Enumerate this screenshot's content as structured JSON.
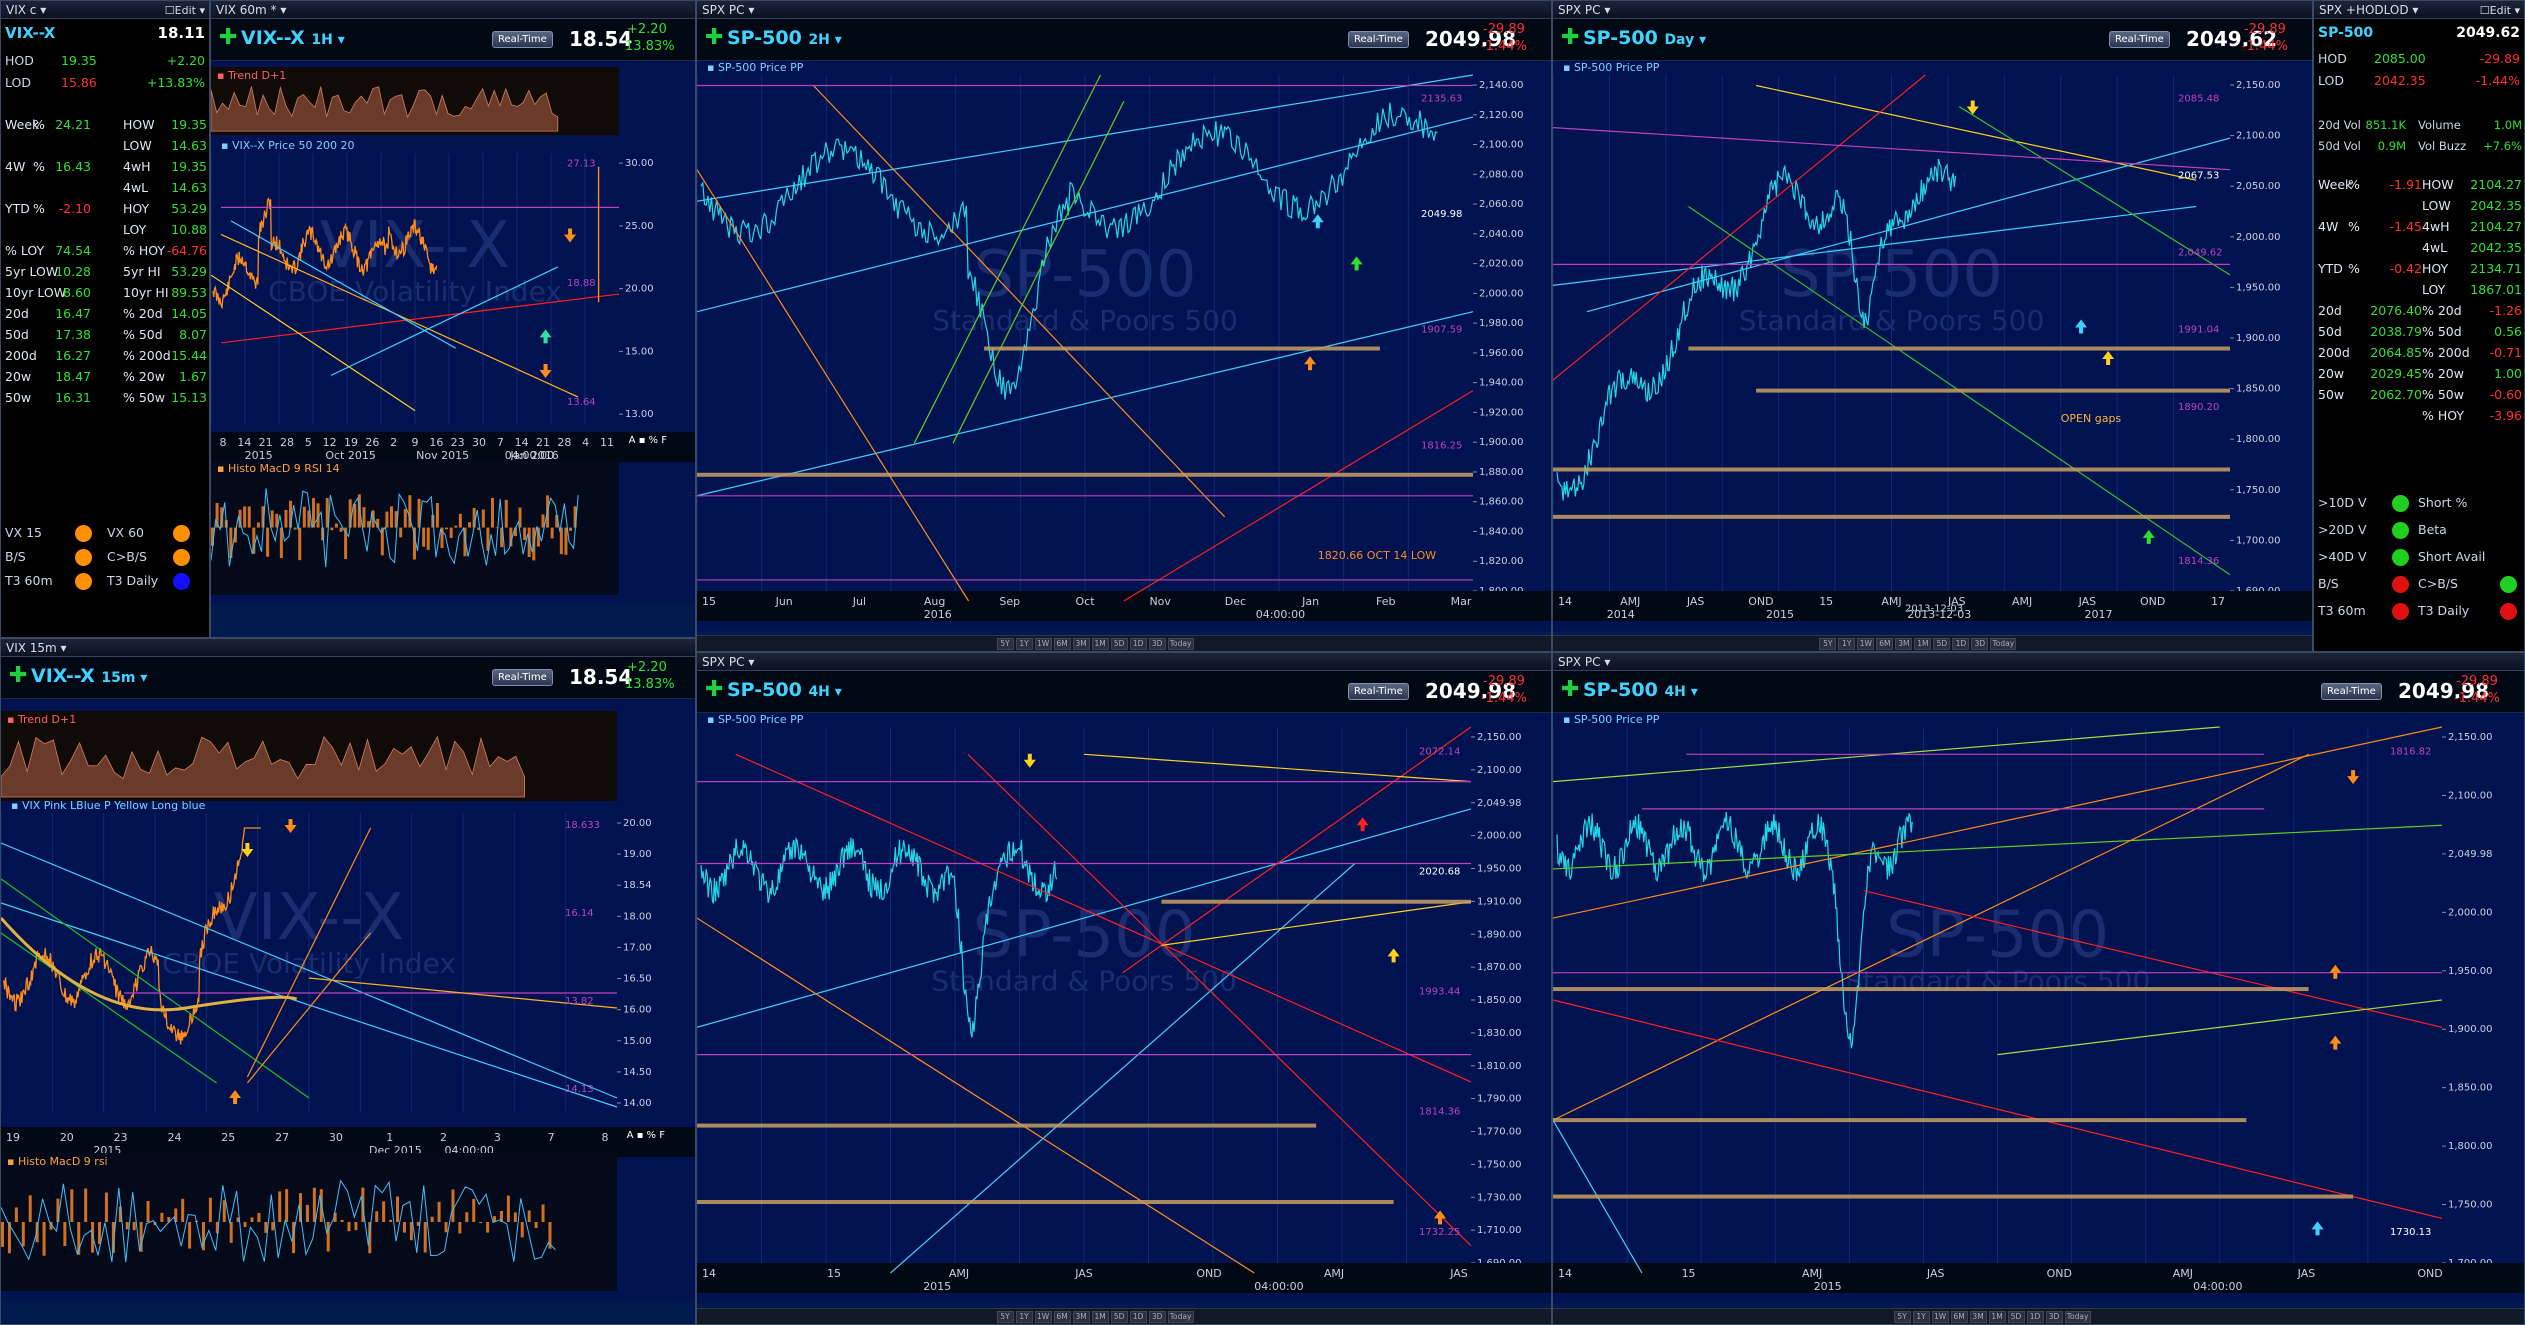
{
  "quote_left": {
    "title": "VIX c",
    "edit": "Edit",
    "symbol": "VIX--X",
    "last": "18.11",
    "rows": [
      {
        "l": "HOD",
        "v": "19.35",
        "v2": "+2.20",
        "c": "#30e030"
      },
      {
        "l": "LOD",
        "v": "15.86",
        "v2": "+13.83%",
        "c": "#ff3030"
      }
    ],
    "stats": [
      [
        "Week",
        "%",
        "24.21",
        "HOW",
        "19.35"
      ],
      [
        "",
        "",
        "",
        "LOW",
        "14.63"
      ],
      [
        "4W",
        "%",
        "16.43",
        "4wH",
        "19.35"
      ],
      [
        "",
        "",
        "",
        "4wL",
        "14.63"
      ],
      [
        "YTD",
        "%",
        "-2.10",
        "HOY",
        "53.29"
      ],
      [
        "",
        "",
        "",
        "LOY",
        "10.88"
      ],
      [
        "% LOY",
        "",
        "74.54",
        "% HOY",
        "-64.76"
      ],
      [
        "5yr LOW",
        "",
        "10.28",
        "5yr HI",
        "53.29"
      ],
      [
        "10yr LOW",
        "",
        "8.60",
        "10yr HI",
        "89.53"
      ],
      [
        "20d",
        "",
        "16.47",
        "% 20d",
        "14.05"
      ],
      [
        "50d",
        "",
        "17.38",
        "% 50d",
        "8.07"
      ],
      [
        "200d",
        "",
        "16.27",
        "% 200d",
        "15.44"
      ],
      [
        "20w",
        "",
        "18.47",
        "% 20w",
        "1.67"
      ],
      [
        "50w",
        "",
        "16.31",
        "% 50w",
        "15.13"
      ]
    ],
    "signals": [
      [
        "VX 15",
        "VX 60"
      ],
      [
        "B/S",
        "C>B/S"
      ],
      [
        "T3 60m",
        "T3 Daily"
      ]
    ]
  },
  "quote_right": {
    "title": "SPX +HODLOD",
    "edit": "Edit",
    "symbol": "SP-500",
    "last": "2049.62",
    "rows": [
      {
        "l": "HOD",
        "v": "2085.00",
        "v2": "-29.89"
      },
      {
        "l": "LOD",
        "v": "2042.35",
        "v2": "-1.44%"
      }
    ],
    "vol": [
      [
        "20d Vol",
        "851.1K",
        "Volume",
        "1.0M"
      ],
      [
        "50d Vol",
        "0.9M",
        "Vol Buzz",
        "+7.6%"
      ]
    ],
    "stats": [
      [
        "Week",
        "%",
        "-1.91",
        "HOW",
        "2104.27"
      ],
      [
        "",
        "",
        "",
        "LOW",
        "2042.35"
      ],
      [
        "4W",
        "%",
        "-1.45",
        "4wH",
        "2104.27"
      ],
      [
        "",
        "",
        "",
        "4wL",
        "2042.35"
      ],
      [
        "YTD",
        "%",
        "-0.42",
        "HOY",
        "2134.71"
      ],
      [
        "",
        "",
        "",
        "LOY",
        "1867.01"
      ],
      [
        "20d",
        "",
        "2076.40",
        "% 20d",
        "-1.26"
      ],
      [
        "50d",
        "",
        "2038.79",
        "% 50d",
        "0.56"
      ],
      [
        "200d",
        "",
        "2064.85",
        "% 200d",
        "-0.71"
      ],
      [
        "20w",
        "",
        "2029.45",
        "% 20w",
        "1.00"
      ],
      [
        "50w",
        "",
        "2062.70",
        "% 50w",
        "-0.60"
      ],
      [
        "",
        "",
        "",
        "% HOY",
        "-3.96"
      ]
    ],
    "signals": [
      [
        ">10D V",
        "Short %"
      ],
      [
        ">20D V",
        "Beta"
      ],
      [
        ">40D V",
        "Short Avail"
      ],
      [
        "B/S",
        "C>B/S"
      ],
      [
        "T3 60m",
        "T3 Daily"
      ]
    ]
  },
  "charts": [
    {
      "id": "vix60",
      "title": "VIX 60m *",
      "symbol": "VIX--X",
      "interval": "1H",
      "price": "18.54",
      "chg": "2.20",
      "pct": "13.83%",
      "legend": "VIX--X Price  50  200  20",
      "xlabels": [
        "8",
        "14",
        "21",
        "28",
        "5",
        "12",
        "19",
        "26",
        "2",
        "9",
        "16",
        "23",
        "30",
        "7",
        "14",
        "21",
        "28",
        "4",
        "11"
      ],
      "xsub": [
        "2015",
        "Oct 2015",
        "Nov 2015",
        "Jan 2016"
      ],
      "ylabels": [
        "30.00",
        "25.00",
        "20.00",
        "15.00",
        "13.00"
      ],
      "labels": [
        "27.13",
        "18.88",
        "13.64"
      ],
      "time": "04:00:00",
      "trend": "Trend  D+1",
      "histo": "Histo  MacD  9  RSI 14"
    },
    {
      "id": "spx2h",
      "title": "SPX PC",
      "symbol": "SP-500",
      "interval": "2H",
      "price": "2049.98",
      "chg": "-29.89",
      "pct": "-1.44%",
      "legend": "SP-500 Price   PP",
      "xlabels": [
        "15",
        "Jun",
        "Jul",
        "Aug",
        "Sep",
        "Oct",
        "Nov",
        "Dec",
        "Jan",
        "Feb",
        "Mar"
      ],
      "xsub": [
        "2016"
      ],
      "ylabels": [
        "2,140.00",
        "2,120.00",
        "2,100.00",
        "2,080.00",
        "2,060.00",
        "2,040.00",
        "2,020.00",
        "2,000.00",
        "1,980.00",
        "1,960.00",
        "1,940.00",
        "1,920.00",
        "1,900.00",
        "1,880.00",
        "1,860.00",
        "1,840.00",
        "1,820.00",
        "1,800.00"
      ],
      "labels": [
        "2135.63",
        "2049.98",
        "1907.59",
        "1816.25",
        "1820.66 OCT 14 LOW"
      ],
      "time": "04:00:00"
    },
    {
      "id": "spxday",
      "title": "SPX PC",
      "symbol": "SP-500",
      "interval": "Day",
      "price": "2049.62",
      "chg": "-29.89",
      "pct": "-1.44%",
      "legend": "SP-500 Price   PP",
      "xlabels": [
        "14",
        "AMJ",
        "JAS",
        "OND",
        "15",
        "AMJ",
        "JAS",
        "AMJ",
        "JAS",
        "OND",
        "17"
      ],
      "xsub": [
        "2014",
        "2015",
        "2013-12-03",
        "2017"
      ],
      "ylabels": [
        "2,150.00",
        "2,100.00",
        "2,050.00",
        "2,000.00",
        "1,950.00",
        "1,900.00",
        "1,850.00",
        "1,800.00",
        "1,750.00",
        "1,700.00",
        "1,690.00"
      ],
      "labels": [
        "2085.48",
        "2067.53",
        "2,049.62",
        "1991.04",
        "1890.20",
        "OPEN gaps",
        "1814.36"
      ]
    },
    {
      "id": "vix15",
      "title": "VIX 15m",
      "symbol": "VIX--X",
      "interval": "15m",
      "price": "18.54",
      "chg": "2.20",
      "pct": "13.83%",
      "legend": "VIX  Pink  LBlue  P  Yellow  Long blue",
      "xlabels": [
        "19",
        "20",
        "23",
        "24",
        "25",
        "27",
        "30",
        "1",
        "2",
        "3",
        "7",
        "8"
      ],
      "xsub": [
        "2015",
        "Dec 2015"
      ],
      "ylabels": [
        "20.00",
        "19.00",
        "18.54",
        "18.00",
        "17.00",
        "16.50",
        "16.00",
        "15.00",
        "14.50",
        "14.00"
      ],
      "labels": [
        "18.633",
        "16.14",
        "13.82",
        "14.13"
      ],
      "time": "04:00:00",
      "trend": "Trend  D+1",
      "histo": "Histo  MacD  9  rsi"
    },
    {
      "id": "spx4h_a",
      "title": "SPX PC",
      "symbol": "SP-500",
      "interval": "4H",
      "price": "2049.98",
      "chg": "-29.89",
      "pct": "-1.44%",
      "legend": "SP-500 Price   PP",
      "xlabels": [
        "14",
        "15",
        "AMJ",
        "JAS",
        "OND",
        "AMJ",
        "JAS"
      ],
      "xsub": [
        "2015"
      ],
      "ylabels": [
        "2,150.00",
        "2,100.00",
        "2,049.98",
        "2,000.00",
        "1,950.00",
        "1,910.00",
        "1,890.00",
        "1,870.00",
        "1,850.00",
        "1,830.00",
        "1,810.00",
        "1,790.00",
        "1,770.00",
        "1,750.00",
        "1,730.00",
        "1,710.00",
        "1,690.00"
      ],
      "labels": [
        "2072.14",
        "2020.68",
        "1993.44",
        "1814.36",
        "1732.25"
      ],
      "time": "04:00:00"
    },
    {
      "id": "spx4h_b",
      "title": "SPX PC",
      "symbol": "SP-500",
      "interval": "4H",
      "price": "2049.98",
      "chg": "-29.89",
      "pct": "-1.44%",
      "legend": "SP-500 Price   PP",
      "xlabels": [
        "14",
        "15",
        "AMJ",
        "JAS",
        "OND",
        "AMJ",
        "JAS",
        "OND"
      ],
      "xsub": [
        "2015"
      ],
      "ylabels": [
        "2,150.00",
        "2,100.00",
        "2,049.98",
        "2,000.00",
        "1,950.00",
        "1,900.00",
        "1,850.00",
        "1,800.00",
        "1,750.00",
        "1,700.00"
      ],
      "labels": [
        "1816.82",
        "1730.13"
      ],
      "time": "04:00:00"
    }
  ],
  "watermark": {
    "title": "SP-500",
    "sub": "Standard & Poors 500",
    "vix": "VIX--X",
    "vixsub": "CBOE Volatility Index"
  },
  "realtime": "Real-Time",
  "nav": [
    "5Y",
    "1Y",
    "1W",
    "6M",
    "3M",
    "1M",
    "5D",
    "1D",
    "3D",
    "Today"
  ],
  "colors": {
    "accent": "#3fd4ff",
    "down": "#ff3030",
    "up": "#30e030",
    "bg": "#001350"
  }
}
